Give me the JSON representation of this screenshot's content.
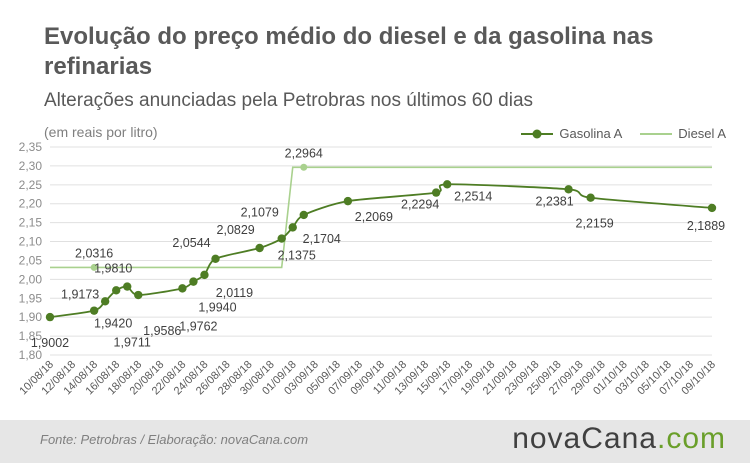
{
  "header": {
    "title": "Evolução do preço médio do diesel e da gasolina nas refinarias",
    "subtitle": "Alterações anunciadas pela Petrobras nos últimos 60 dias",
    "unit": "(em reais por litro)"
  },
  "footer": {
    "source": "Fonte:  Petrobras  / Elaboração:  novaCana.com",
    "brand_main": "novaCana",
    "brand_dot": ".",
    "brand_com": "com"
  },
  "colors": {
    "gasolina": "#4e7d24",
    "diesel": "#a9d18e",
    "grid": "#e0e0e0",
    "text": "#595959"
  },
  "chart_data": {
    "type": "line",
    "ylim": [
      1.8,
      2.35
    ],
    "yticks": [
      "1,80",
      "1,85",
      "1,90",
      "1,95",
      "2,00",
      "2,05",
      "2,10",
      "2,15",
      "2,20",
      "2,25",
      "2,30",
      "2,35"
    ],
    "xlim": [
      "2018-08-10",
      "2018-10-09"
    ],
    "xticks": [
      "10/08/18",
      "12/08/18",
      "14/08/18",
      "16/08/18",
      "18/08/18",
      "20/08/18",
      "22/08/18",
      "24/08/18",
      "26/08/18",
      "28/08/18",
      "30/08/18",
      "01/09/18",
      "03/09/18",
      "05/09/18",
      "07/09/18",
      "09/09/18",
      "11/09/18",
      "13/09/18",
      "15/09/18",
      "17/09/18",
      "19/09/18",
      "21/09/18",
      "23/09/18",
      "25/09/18",
      "27/09/18",
      "29/09/18",
      "01/10/18",
      "03/10/18",
      "05/10/18",
      "07/10/18",
      "09/10/18"
    ],
    "legend_position": "top-right",
    "grid": true,
    "series": [
      {
        "name": "Gasolina A",
        "points": [
          {
            "x": "2018-08-10",
            "y": 1.9002,
            "label": "1,9002",
            "lpos": "below"
          },
          {
            "x": "2018-08-14",
            "y": 1.9173,
            "label": "1,9173",
            "lpos": "above"
          },
          {
            "x": "2018-08-15",
            "y": 1.942,
            "label": "1,9420",
            "lpos": "below"
          },
          {
            "x": "2018-08-16",
            "y": 1.9711,
            "label": "1,9711",
            "lpos": "below"
          },
          {
            "x": "2018-08-17",
            "y": 1.981,
            "label": "1,9810",
            "lpos": "above"
          },
          {
            "x": "2018-08-18",
            "y": 1.9586,
            "label": "1,9586",
            "lpos": "below"
          },
          {
            "x": "2018-08-22",
            "y": 1.9762,
            "label": "1,9762",
            "lpos": "below"
          },
          {
            "x": "2018-08-23",
            "y": 1.994,
            "label": "1,9940",
            "lpos": "below"
          },
          {
            "x": "2018-08-24",
            "y": 2.0119,
            "label": "2,0119",
            "lpos": "below"
          },
          {
            "x": "2018-08-25",
            "y": 2.0544,
            "label": "2,0544",
            "lpos": "above"
          },
          {
            "x": "2018-08-29",
            "y": 2.0829,
            "label": "2,0829",
            "lpos": "above"
          },
          {
            "x": "2018-08-31",
            "y": 2.1079,
            "label": "2,1079",
            "lpos": "above"
          },
          {
            "x": "2018-09-01",
            "y": 2.1375,
            "label": "2,1375",
            "lpos": "below"
          },
          {
            "x": "2018-09-02",
            "y": 2.1704,
            "label": "2,1704",
            "lpos": "below"
          },
          {
            "x": "2018-09-06",
            "y": 2.2069,
            "label": "2,2069",
            "lpos": "below"
          },
          {
            "x": "2018-09-14",
            "y": 2.2294,
            "label": "2,2294",
            "lpos": "below"
          },
          {
            "x": "2018-09-15",
            "y": 2.2514,
            "label": "2,2514",
            "lpos": "below"
          },
          {
            "x": "2018-09-26",
            "y": 2.2381,
            "label": "2,2381",
            "lpos": "below"
          },
          {
            "x": "2018-09-28",
            "y": 2.2159,
            "label": "2,2159",
            "lpos": "below"
          },
          {
            "x": "2018-10-09",
            "y": 2.1889,
            "label": "2,1889",
            "lpos": "below"
          }
        ]
      },
      {
        "name": "Diesel A",
        "points": [
          {
            "x": "2018-08-10",
            "y": 2.0316
          },
          {
            "x": "2018-08-31",
            "y": 2.0316
          },
          {
            "x": "2018-09-01",
            "y": 2.2964
          },
          {
            "x": "2018-10-09",
            "y": 2.2964
          }
        ],
        "markers": [
          {
            "x": "2018-08-14",
            "y": 2.0316,
            "label": "2,0316",
            "lpos": "above"
          },
          {
            "x": "2018-09-02",
            "y": 2.2964,
            "label": "2,2964",
            "lpos": "above"
          }
        ]
      }
    ]
  }
}
